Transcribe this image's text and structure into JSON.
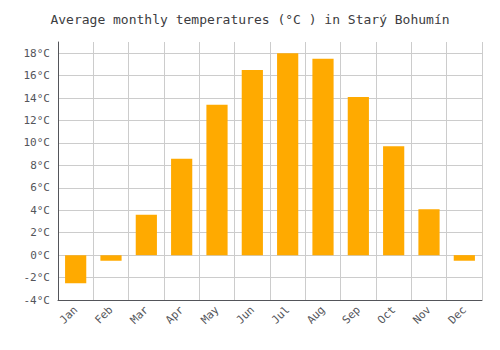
{
  "chart_data": {
    "type": "bar",
    "title": "Average monthly temperatures (°C ) in Starý Bohumín",
    "categories": [
      "Jan",
      "Feb",
      "Mar",
      "Apr",
      "May",
      "Jun",
      "Jul",
      "Aug",
      "Sep",
      "Oct",
      "Nov",
      "Dec"
    ],
    "values": [
      -2.5,
      -0.5,
      3.6,
      8.6,
      13.4,
      16.5,
      18.0,
      17.5,
      14.1,
      9.7,
      4.1,
      -0.5
    ],
    "color": "#FFAA00",
    "ylim": [
      -4,
      19
    ],
    "yticks": [
      {
        "value": -4,
        "label": "-4°C"
      },
      {
        "value": -2,
        "label": "-2°C"
      },
      {
        "value": 0,
        "label": "0°C"
      },
      {
        "value": 2,
        "label": "2°C"
      },
      {
        "value": 4,
        "label": "4°C"
      },
      {
        "value": 6,
        "label": "6°C"
      },
      {
        "value": 8,
        "label": "8°C"
      },
      {
        "value": 10,
        "label": "10°C"
      },
      {
        "value": 12,
        "label": "12°C"
      },
      {
        "value": 14,
        "label": "14°C"
      },
      {
        "value": 16,
        "label": "16°C"
      },
      {
        "value": 18,
        "label": "18°C"
      }
    ],
    "grid": true
  }
}
